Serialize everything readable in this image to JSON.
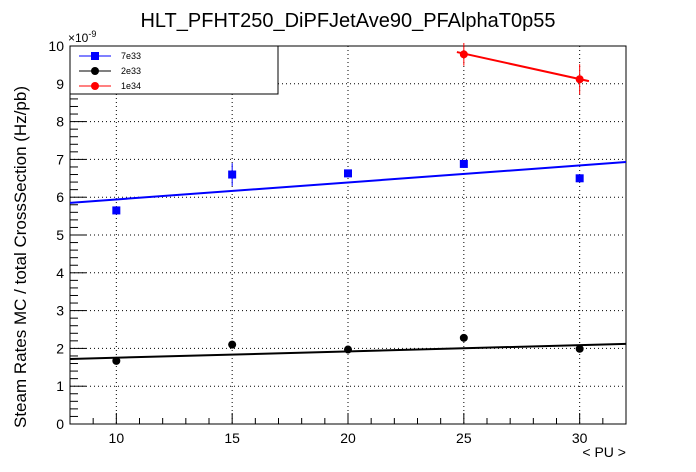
{
  "chart_data": {
    "type": "scatter",
    "title": "HLT_PFHT250_DiPFJetAve90_PFAlphaT0p55",
    "xlabel": "< PU >",
    "ylabel": "Steam Rates MC / total CrossSection (Hz/pb)",
    "y_multiplier_label": "×10",
    "y_multiplier_exp": "-9",
    "xlim": [
      8,
      32
    ],
    "ylim": [
      0,
      10
    ],
    "x_ticks": [
      "10",
      "15",
      "20",
      "25",
      "30"
    ],
    "y_ticks": [
      "0",
      "1",
      "2",
      "3",
      "4",
      "5",
      "6",
      "7",
      "8",
      "9",
      "10"
    ],
    "grid": true,
    "legend_position": "top-left",
    "series": [
      {
        "name": "7e33",
        "color": "#0000ff",
        "marker": "square",
        "x": [
          10,
          15,
          20,
          25,
          30
        ],
        "y": [
          5.65,
          6.6,
          6.63,
          6.88,
          6.5
        ],
        "yerr": [
          0.1,
          0.3,
          0.1,
          0.1,
          0.1
        ],
        "fit": [
          [
            8,
            5.85
          ],
          [
            32,
            6.93
          ]
        ]
      },
      {
        "name": "2e33",
        "color": "#000000",
        "marker": "circle",
        "x": [
          10,
          15,
          20,
          25,
          30
        ],
        "y": [
          1.67,
          2.1,
          1.97,
          2.28,
          1.99
        ],
        "yerr": [
          0.05,
          0.1,
          0.05,
          0.08,
          0.05
        ],
        "fit": [
          [
            8,
            1.72
          ],
          [
            32,
            2.12
          ]
        ]
      },
      {
        "name": "1e34",
        "color": "#ff0000",
        "marker": "circle",
        "x": [
          25,
          30
        ],
        "y": [
          9.78,
          9.12
        ],
        "yerr": [
          0.3,
          0.4
        ],
        "fit": [
          [
            24.7,
            9.84
          ],
          [
            30.4,
            9.07
          ]
        ]
      }
    ]
  }
}
